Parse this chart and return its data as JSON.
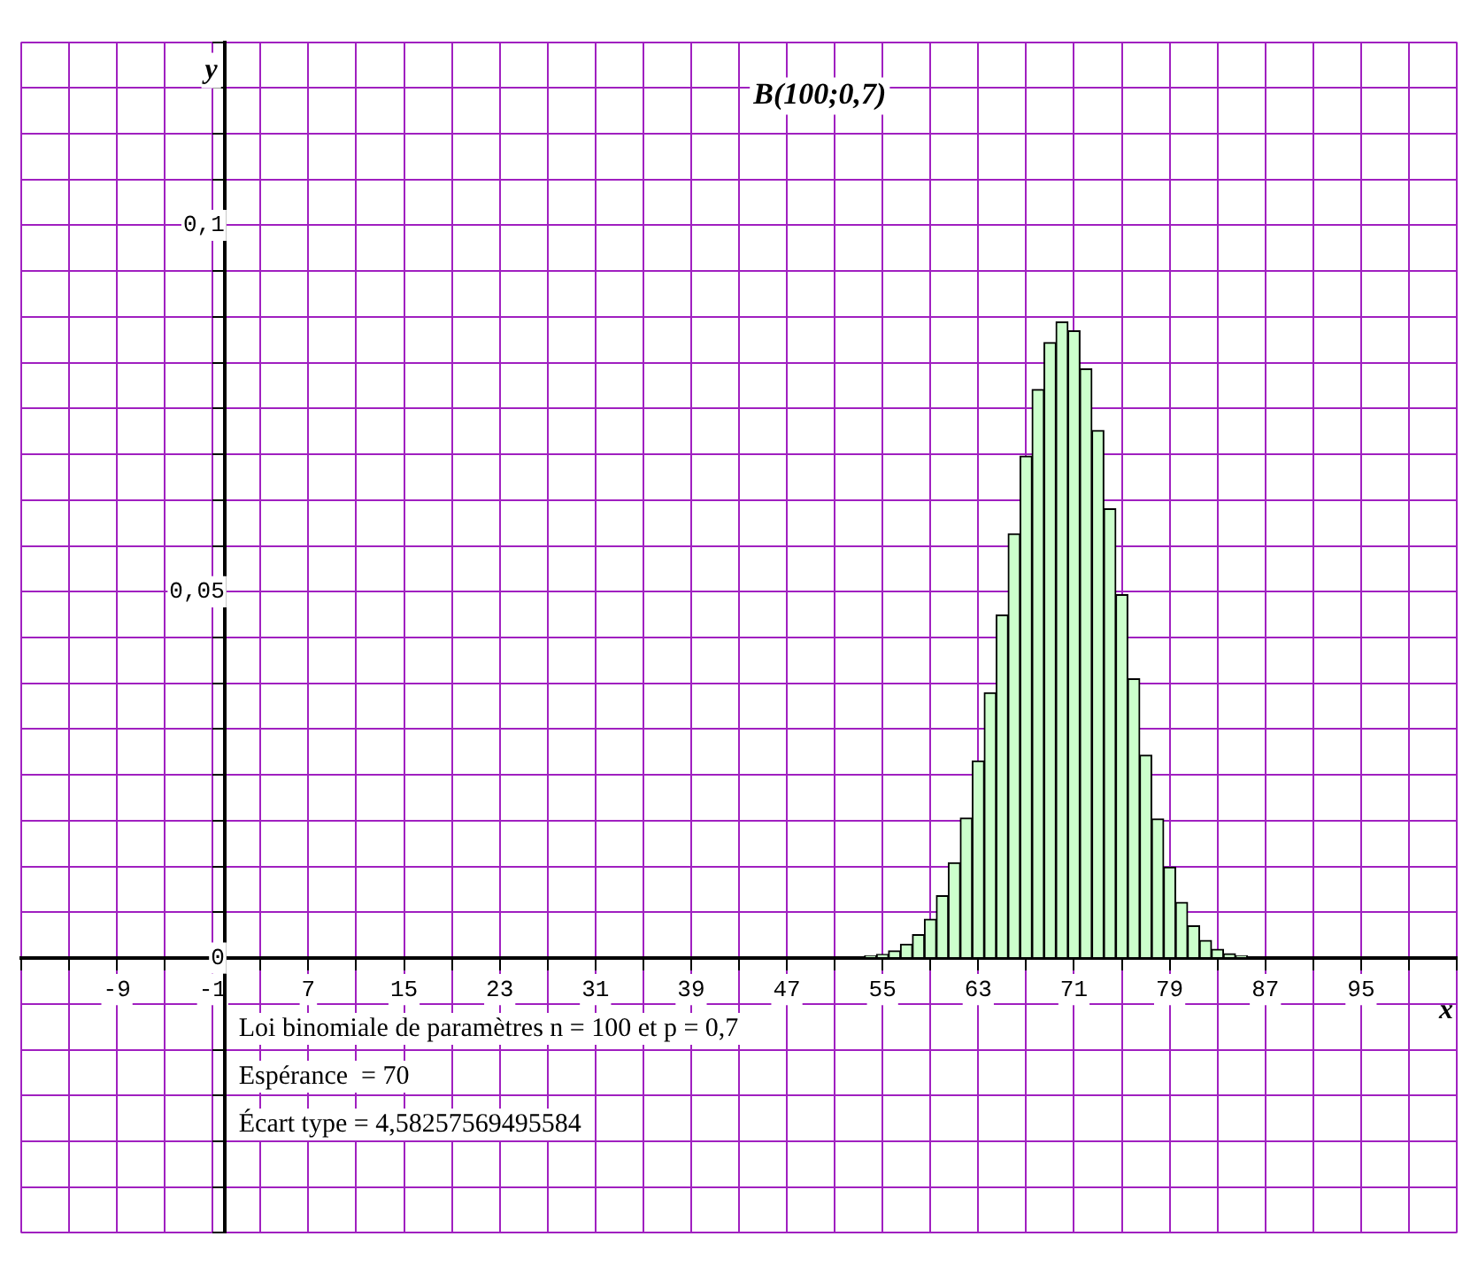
{
  "chart_data": {
    "type": "histogram",
    "title": "B(100;0,7)",
    "xlabel": "x",
    "ylabel": "y",
    "annotations": [
      "Loi binomiale de paramètres n = 100 et p = 0,7",
      "Espérance  = 70",
      "Écart type = 4,58257569495584"
    ],
    "bins": [
      53.5,
      54.5,
      55.5,
      56.5,
      57.5,
      58.5,
      59.5,
      60.5,
      61.5,
      62.5,
      63.5,
      64.5,
      65.5,
      66.5,
      67.5,
      68.5,
      69.5,
      70.5,
      71.5,
      72.5,
      73.5,
      74.5,
      75.5,
      76.5,
      77.5,
      78.5,
      79.5,
      80.5,
      81.5,
      82.5,
      83.5,
      84.5,
      85.5
    ],
    "values": [
      0.0003,
      0.0005,
      0.001,
      0.0019,
      0.0032,
      0.0053,
      0.0085,
      0.013,
      0.0191,
      0.0269,
      0.0362,
      0.0468,
      0.0579,
      0.0685,
      0.0776,
      0.084,
      0.0868,
      0.0856,
      0.0804,
      0.072,
      0.0613,
      0.0496,
      0.0381,
      0.0277,
      0.019,
      0.0124,
      0.0076,
      0.0044,
      0.0024,
      0.0012,
      0.0006,
      0.0003
    ],
    "color": "#ccffcc",
    "xlim": [
      -17,
      103
    ],
    "ylim": [
      -0.0375,
      0.125
    ],
    "xticks": [
      {
        "value": -17,
        "label": null
      },
      {
        "value": -13,
        "label": null
      },
      -9,
      {
        "value": -5,
        "label": null
      },
      -1,
      {
        "value": 3,
        "label": null
      },
      7,
      {
        "value": 11,
        "label": null
      },
      15,
      {
        "value": 19,
        "label": null
      },
      23,
      {
        "value": 27,
        "label": null
      },
      31,
      {
        "value": 35,
        "label": null
      },
      39,
      {
        "value": 43,
        "label": null
      },
      47,
      {
        "value": 51,
        "label": null
      },
      55,
      {
        "value": 59,
        "label": null
      },
      63,
      {
        "value": 67,
        "label": null
      },
      71,
      {
        "value": 75,
        "label": null
      },
      79,
      {
        "value": 83,
        "label": null
      },
      87,
      {
        "value": 91,
        "label": null
      },
      95,
      {
        "value": 99,
        "label": null
      },
      {
        "value": 103,
        "label": null
      }
    ],
    "yticks": [
      {
        "value": -0.0375,
        "label": null
      },
      {
        "value": -0.03125,
        "label": null
      },
      {
        "value": -0.025,
        "label": null
      },
      {
        "value": -0.01875,
        "label": null
      },
      {
        "value": -0.0125,
        "label": null
      },
      {
        "value": -0.00625,
        "label": null
      },
      0,
      {
        "value": 0.00625,
        "label": null
      },
      {
        "value": 0.0125,
        "label": null
      },
      {
        "value": 0.01875,
        "label": null
      },
      {
        "value": 0.025,
        "label": null
      },
      {
        "value": 0.03125,
        "label": null
      },
      {
        "value": 0.0375,
        "label": null
      },
      {
        "value": 0.04375,
        "label": null
      },
      {
        "value": 0.05,
        "label": "0,05"
      },
      {
        "value": 0.05625,
        "label": null
      },
      {
        "value": 0.0625,
        "label": null
      },
      {
        "value": 0.06875,
        "label": null
      },
      {
        "value": 0.075,
        "label": null
      },
      {
        "value": 0.08125,
        "label": null
      },
      {
        "value": 0.0875,
        "label": null
      },
      {
        "value": 0.09375,
        "label": null
      },
      {
        "value": 0.1,
        "label": "0,1"
      },
      {
        "value": 0.10625,
        "label": null
      },
      {
        "value": 0.1125,
        "label": null
      },
      {
        "value": 0.11875,
        "label": null
      },
      {
        "value": 0.125,
        "label": null
      }
    ],
    "grid": true,
    "legend": false
  }
}
